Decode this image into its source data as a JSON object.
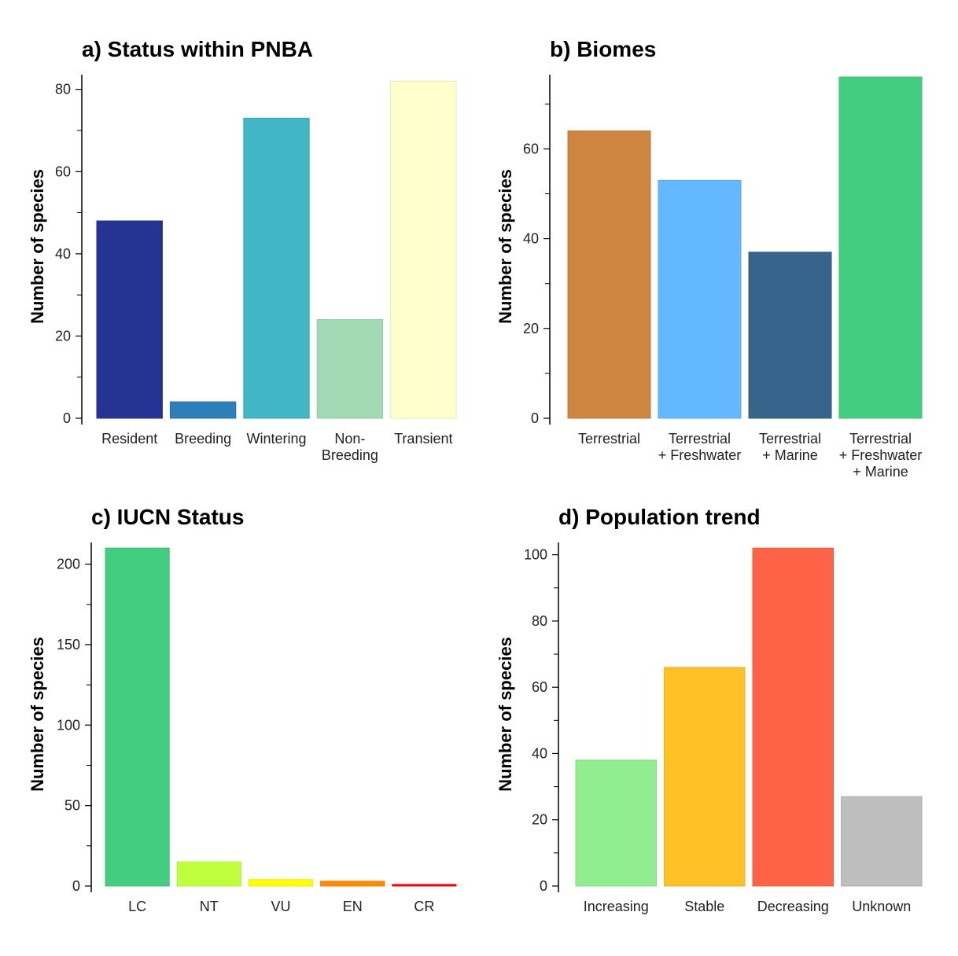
{
  "chart_data": [
    {
      "type": "bar",
      "title": "a) Status within PNBA",
      "xlabel": "",
      "ylabel": "Number of species",
      "categories": [
        "Resident",
        "Breeding",
        "Wintering",
        "Non-\nBreeding",
        "Transient"
      ],
      "values": [
        48,
        4,
        73,
        24,
        82
      ],
      "colors": [
        "#253494",
        "#2c7fb8",
        "#41b6c4",
        "#a1dab4",
        "#ffffcc"
      ],
      "ylim": [
        0,
        83
      ],
      "yticks": [
        0,
        20,
        40,
        60,
        80
      ],
      "minor_ticks": [
        10,
        30,
        50,
        70
      ],
      "grid": false
    },
    {
      "type": "bar",
      "title": "b) Biomes",
      "xlabel": "",
      "ylabel": "Number of species",
      "categories": [
        "Terrestrial",
        "Terrestrial\n+ Freshwater",
        "Terrestrial\n+ Marine",
        "Terrestrial\n+ Freshwater\n+ Marine"
      ],
      "values": [
        64,
        53,
        37,
        76
      ],
      "colors": [
        "#cd853f",
        "#63b8ff",
        "#36648b",
        "#43cd80"
      ],
      "ylim": [
        0,
        76
      ],
      "yticks": [
        0,
        20,
        40,
        60
      ],
      "minor_ticks": [
        10,
        30,
        50,
        70
      ],
      "grid": false
    },
    {
      "type": "bar",
      "title": "c) IUCN Status",
      "xlabel": "",
      "ylabel": "Number of species",
      "categories": [
        "LC",
        "NT",
        "VU",
        "EN",
        "CR"
      ],
      "values": [
        210,
        15,
        4,
        3,
        1
      ],
      "colors": [
        "#43cd80",
        "#c0ff3e",
        "#ffff00",
        "#ff8c00",
        "#ff0000"
      ],
      "ylim": [
        0,
        212
      ],
      "yticks": [
        0,
        50,
        100,
        150,
        200
      ],
      "minor_ticks": [
        25,
        75,
        125,
        175
      ],
      "grid": false
    },
    {
      "type": "bar",
      "title": "d) Population trend",
      "xlabel": "",
      "ylabel": "Number of species",
      "categories": [
        "Increasing",
        "Stable",
        "Decreasing",
        "Unknown"
      ],
      "values": [
        38,
        66,
        102,
        27
      ],
      "colors": [
        "#90ee90",
        "#ffc125",
        "#ff6347",
        "#bebebe"
      ],
      "ylim": [
        0,
        103
      ],
      "yticks": [
        0,
        20,
        40,
        60,
        80,
        100
      ],
      "minor_ticks": [
        10,
        30,
        50,
        70,
        90
      ],
      "grid": false
    }
  ]
}
